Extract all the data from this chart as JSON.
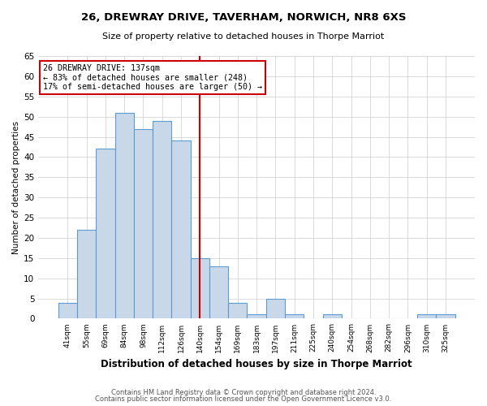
{
  "title1": "26, DREWRAY DRIVE, TAVERHAM, NORWICH, NR8 6XS",
  "title2": "Size of property relative to detached houses in Thorpe Marriot",
  "xlabel": "Distribution of detached houses by size in Thorpe Marriot",
  "ylabel": "Number of detached properties",
  "bin_labels": [
    "41sqm",
    "55sqm",
    "69sqm",
    "84sqm",
    "98sqm",
    "112sqm",
    "126sqm",
    "140sqm",
    "154sqm",
    "169sqm",
    "183sqm",
    "197sqm",
    "211sqm",
    "225sqm",
    "240sqm",
    "254sqm",
    "268sqm",
    "282sqm",
    "296sqm",
    "310sqm",
    "325sqm"
  ],
  "bar_heights": [
    4,
    22,
    42,
    51,
    47,
    49,
    44,
    15,
    13,
    4,
    1,
    5,
    1,
    0,
    1,
    0,
    0,
    0,
    0,
    1,
    1
  ],
  "bar_color": "#c8d8e8",
  "bar_edge_color": "#5b9bd5",
  "vline_x": 7.0,
  "vline_color": "#cc0000",
  "annotation_line1": "26 DREWRAY DRIVE: 137sqm",
  "annotation_line2": "← 83% of detached houses are smaller (248)",
  "annotation_line3": "17% of semi-detached houses are larger (50) →",
  "annotation_box_color": "#ffffff",
  "annotation_box_edge": "#cc0000",
  "ylim": [
    0,
    65
  ],
  "yticks": [
    0,
    5,
    10,
    15,
    20,
    25,
    30,
    35,
    40,
    45,
    50,
    55,
    60,
    65
  ],
  "footer1": "Contains HM Land Registry data © Crown copyright and database right 2024.",
  "footer2": "Contains public sector information licensed under the Open Government Licence v3.0.",
  "bg_color": "#ffffff",
  "grid_color": "#cccccc"
}
